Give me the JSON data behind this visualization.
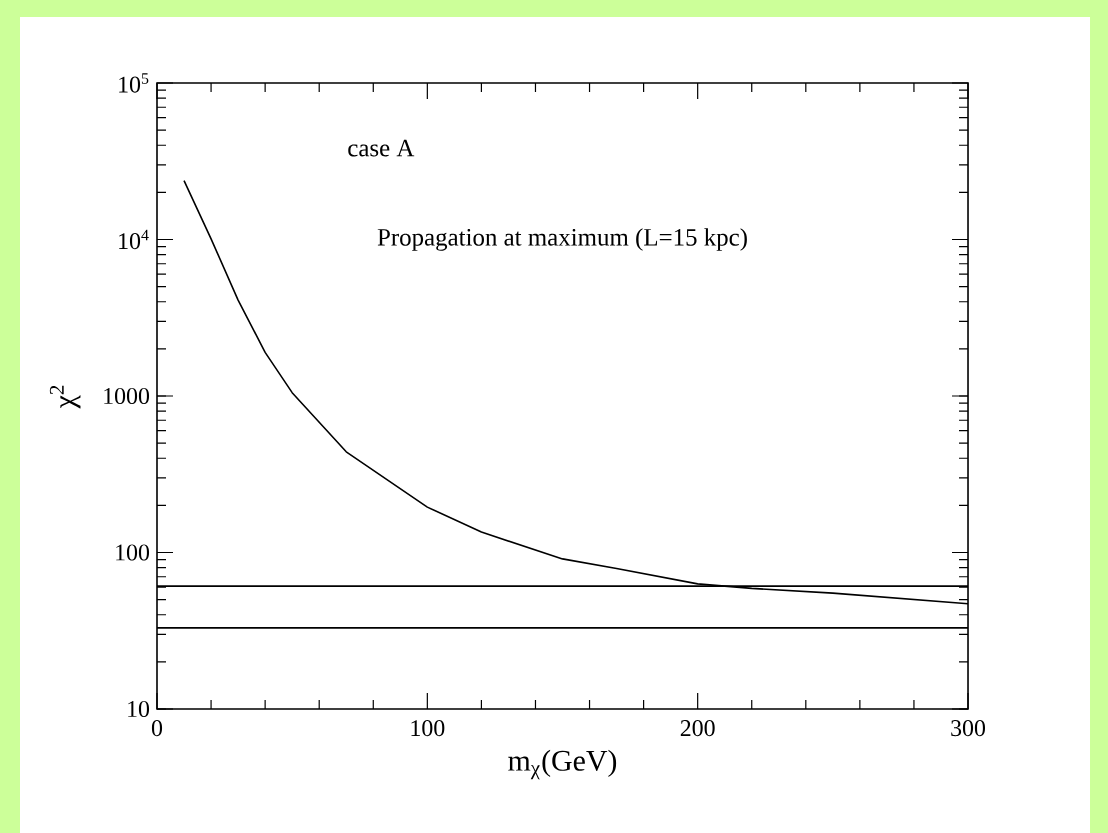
{
  "chart_data": {
    "type": "line",
    "xlabel": "m$_{χ}$(GeV)",
    "ylabel": "χ$^{2}$",
    "annotations": [
      "case A",
      "Propagation at maximum (L=15 kpc)"
    ],
    "x": [
      10,
      20,
      30,
      40,
      50,
      70,
      100,
      120,
      150,
      170,
      200,
      220,
      250,
      300
    ],
    "series": [
      {
        "color": "#000000",
        "values": [
          23800,
          10100,
          4100,
          1900,
          1050,
          440,
          195,
          135,
          91,
          79,
          63,
          59,
          55,
          47
        ]
      }
    ],
    "ref_lines": [
      {
        "axis": "y",
        "value": 61,
        "color": "#000000"
      },
      {
        "axis": "y",
        "value": 33,
        "color": "#000000"
      }
    ],
    "log": "y",
    "grid": false,
    "marker": "none",
    "line_style": "solid",
    "xlim": [
      0,
      300
    ],
    "ylim": [
      10,
      100000
    ],
    "xticks": [
      0,
      100,
      200,
      300
    ],
    "yticks": [
      10,
      100,
      1000,
      {
        "value": 10000,
        "label": "10$^{4}$"
      },
      {
        "value": 100000,
        "label": "10$^{5}$"
      }
    ]
  }
}
